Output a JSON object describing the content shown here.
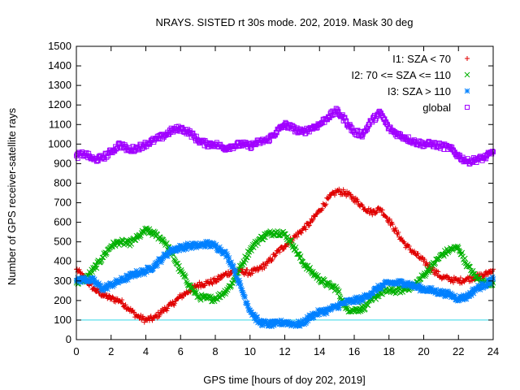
{
  "chart_data": {
    "type": "scatter",
    "title": "NRAYS. SISTED rt 30s mode. 202, 2019. Mask 30 deg",
    "xlabel": "GPS time [hours of doy 202, 2019]",
    "ylabel": "Number of GPS receiver-satellite rays",
    "xlim": [
      0,
      24
    ],
    "ylim": [
      0,
      1500
    ],
    "xticks": [
      "0",
      "2",
      "4",
      "6",
      "8",
      "10",
      "12",
      "14",
      "16",
      "18",
      "20",
      "22",
      "24"
    ],
    "yticks": [
      "0",
      "100",
      "200",
      "300",
      "400",
      "500",
      "600",
      "700",
      "800",
      "900",
      "1000",
      "1100",
      "1200",
      "1300",
      "1400",
      "1500"
    ],
    "grid": false,
    "legend_position": "top-right",
    "reference_line": {
      "y": 100,
      "color": "#33d6e6"
    },
    "series": [
      {
        "name": "I1: SZA < 70",
        "marker": "+",
        "color": "#e00000",
        "x": [
          0,
          0.5,
          1,
          1.5,
          2,
          2.5,
          3,
          3.5,
          4,
          4.5,
          5,
          5.5,
          6,
          6.5,
          7,
          7.5,
          8,
          8.5,
          9,
          9.5,
          10,
          10.5,
          11,
          11.5,
          12,
          12.5,
          13,
          13.5,
          14,
          14.5,
          15,
          15.5,
          16,
          16.5,
          17,
          17.5,
          18,
          18.5,
          19,
          19.5,
          20,
          20.5,
          21,
          21.5,
          22,
          22.5,
          23,
          23.5,
          24
        ],
        "values": [
          360,
          310,
          260,
          230,
          210,
          200,
          160,
          120,
          100,
          110,
          150,
          180,
          220,
          250,
          280,
          290,
          300,
          330,
          350,
          350,
          340,
          360,
          390,
          440,
          480,
          520,
          560,
          600,
          660,
          720,
          760,
          750,
          720,
          680,
          650,
          670,
          610,
          540,
          480,
          440,
          400,
          360,
          320,
          310,
          300,
          310,
          320,
          330,
          360
        ]
      },
      {
        "name": "I2: 70 <= SZA <= 110",
        "marker": "x",
        "color": "#00b000",
        "x": [
          0,
          0.5,
          1,
          1.5,
          2,
          2.5,
          3,
          3.5,
          4,
          4.5,
          5,
          5.5,
          6,
          6.5,
          7,
          7.5,
          8,
          8.5,
          9,
          9.5,
          10,
          10.5,
          11,
          11.5,
          12,
          12.5,
          13,
          13.5,
          14,
          14.5,
          15,
          15.5,
          16,
          16.5,
          17,
          17.5,
          18,
          18.5,
          19,
          19.5,
          20,
          20.5,
          21,
          21.5,
          22,
          22.5,
          23,
          23.5,
          24
        ],
        "values": [
          290,
          310,
          360,
          420,
          480,
          500,
          490,
          520,
          560,
          540,
          510,
          440,
          350,
          280,
          220,
          210,
          210,
          240,
          290,
          380,
          460,
          510,
          540,
          550,
          540,
          480,
          400,
          350,
          310,
          280,
          260,
          160,
          150,
          160,
          200,
          240,
          250,
          250,
          260,
          280,
          330,
          380,
          430,
          460,
          470,
          380,
          320,
          290,
          290
        ]
      },
      {
        "name": "I3: SZA > 110",
        "marker": "*",
        "color": "#0080ff",
        "x": [
          0,
          0.5,
          1,
          1.5,
          2,
          2.5,
          3,
          3.5,
          4,
          4.5,
          5,
          5.5,
          6,
          6.5,
          7,
          7.5,
          8,
          8.5,
          9,
          9.5,
          10,
          10.5,
          11,
          11.5,
          12,
          12.5,
          13,
          13.5,
          14,
          14.5,
          15,
          15.5,
          16,
          16.5,
          17,
          17.5,
          18,
          18.5,
          19,
          19.5,
          20,
          20.5,
          21,
          21.5,
          22,
          22.5,
          23,
          23.5,
          24
        ],
        "values": [
          300,
          310,
          300,
          260,
          280,
          300,
          320,
          340,
          350,
          380,
          420,
          460,
          470,
          480,
          480,
          490,
          480,
          450,
          380,
          260,
          150,
          90,
          80,
          80,
          90,
          80,
          80,
          120,
          140,
          150,
          170,
          190,
          200,
          210,
          240,
          270,
          290,
          290,
          290,
          270,
          260,
          250,
          240,
          230,
          210,
          220,
          260,
          280,
          310
        ]
      },
      {
        "name": "global",
        "marker": "square",
        "color": "#a000ff",
        "x": [
          0,
          0.5,
          1,
          1.5,
          2,
          2.5,
          3,
          3.5,
          4,
          4.5,
          5,
          5.5,
          6,
          6.5,
          7,
          7.5,
          8,
          8.5,
          9,
          9.5,
          10,
          10.5,
          11,
          11.5,
          12,
          12.5,
          13,
          13.5,
          14,
          14.5,
          15,
          15.5,
          16,
          16.5,
          17,
          17.5,
          18,
          18.5,
          19,
          19.5,
          20,
          20.5,
          21,
          21.5,
          22,
          22.5,
          23,
          23.5,
          24
        ],
        "values": [
          940,
          950,
          920,
          930,
          960,
          1000,
          970,
          980,
          1000,
          1020,
          1040,
          1070,
          1080,
          1060,
          1020,
          1000,
          1000,
          980,
          990,
          1000,
          990,
          1010,
          1020,
          1060,
          1100,
          1080,
          1060,
          1080,
          1100,
          1140,
          1170,
          1120,
          1060,
          1050,
          1120,
          1160,
          1080,
          1050,
          1030,
          1010,
          1000,
          1000,
          990,
          980,
          940,
          910,
          920,
          930,
          960
        ]
      }
    ]
  }
}
